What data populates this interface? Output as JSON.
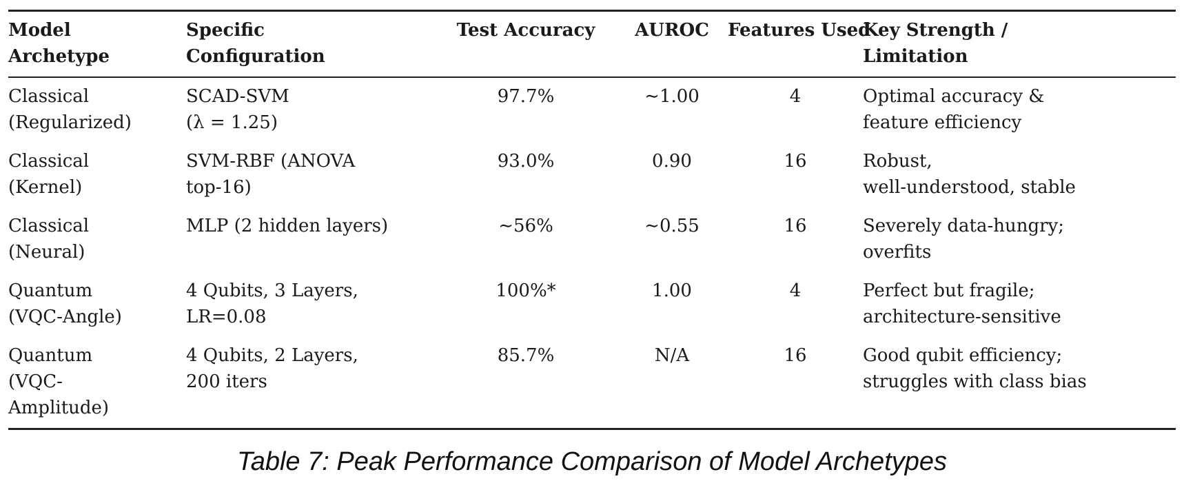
{
  "table": {
    "headers": [
      [
        "Model",
        "Archetype"
      ],
      [
        "Specific",
        "Configuration"
      ],
      [
        "Test Accuracy"
      ],
      [
        "AUROC"
      ],
      [
        "Features Used"
      ],
      [
        "Key Strength /",
        "Limitation"
      ]
    ],
    "rows": [
      [
        [
          "Classical",
          "(Regularized)"
        ],
        [
          "SCAD-SVM",
          "(λ = 1.25)"
        ],
        [
          "97.7%"
        ],
        [
          "∼1.00"
        ],
        [
          "4"
        ],
        [
          "Optimal accuracy &",
          "feature efficiency"
        ]
      ],
      [
        [
          "Classical",
          "(Kernel)"
        ],
        [
          "SVM-RBF (ANOVA",
          "top-16)"
        ],
        [
          "93.0%"
        ],
        [
          "0.90"
        ],
        [
          "16"
        ],
        [
          "Robust,",
          "well-understood, stable"
        ]
      ],
      [
        [
          "Classical",
          "(Neural)"
        ],
        [
          "MLP (2 hidden layers)"
        ],
        [
          "∼56%"
        ],
        [
          "∼0.55"
        ],
        [
          "16"
        ],
        [
          "Severely data-hungry;",
          "overfits"
        ]
      ],
      [
        [
          "Quantum",
          "(VQC-Angle)"
        ],
        [
          "4 Qubits, 3 Layers,",
          "LR=0.08"
        ],
        [
          "100%*"
        ],
        [
          "1.00"
        ],
        [
          "4"
        ],
        [
          "Perfect but fragile;",
          "architecture-sensitive"
        ]
      ],
      [
        [
          "Quantum",
          "(VQC-",
          "Amplitude)"
        ],
        [
          "4 Qubits, 2 Layers,",
          "200 iters"
        ],
        [
          "85.7%"
        ],
        [
          "N/A"
        ],
        [
          "16"
        ],
        [
          "Good qubit efficiency;",
          "struggles with class bias"
        ]
      ]
    ]
  },
  "caption": "Table 7: Peak Performance Comparison of Model Archetypes"
}
